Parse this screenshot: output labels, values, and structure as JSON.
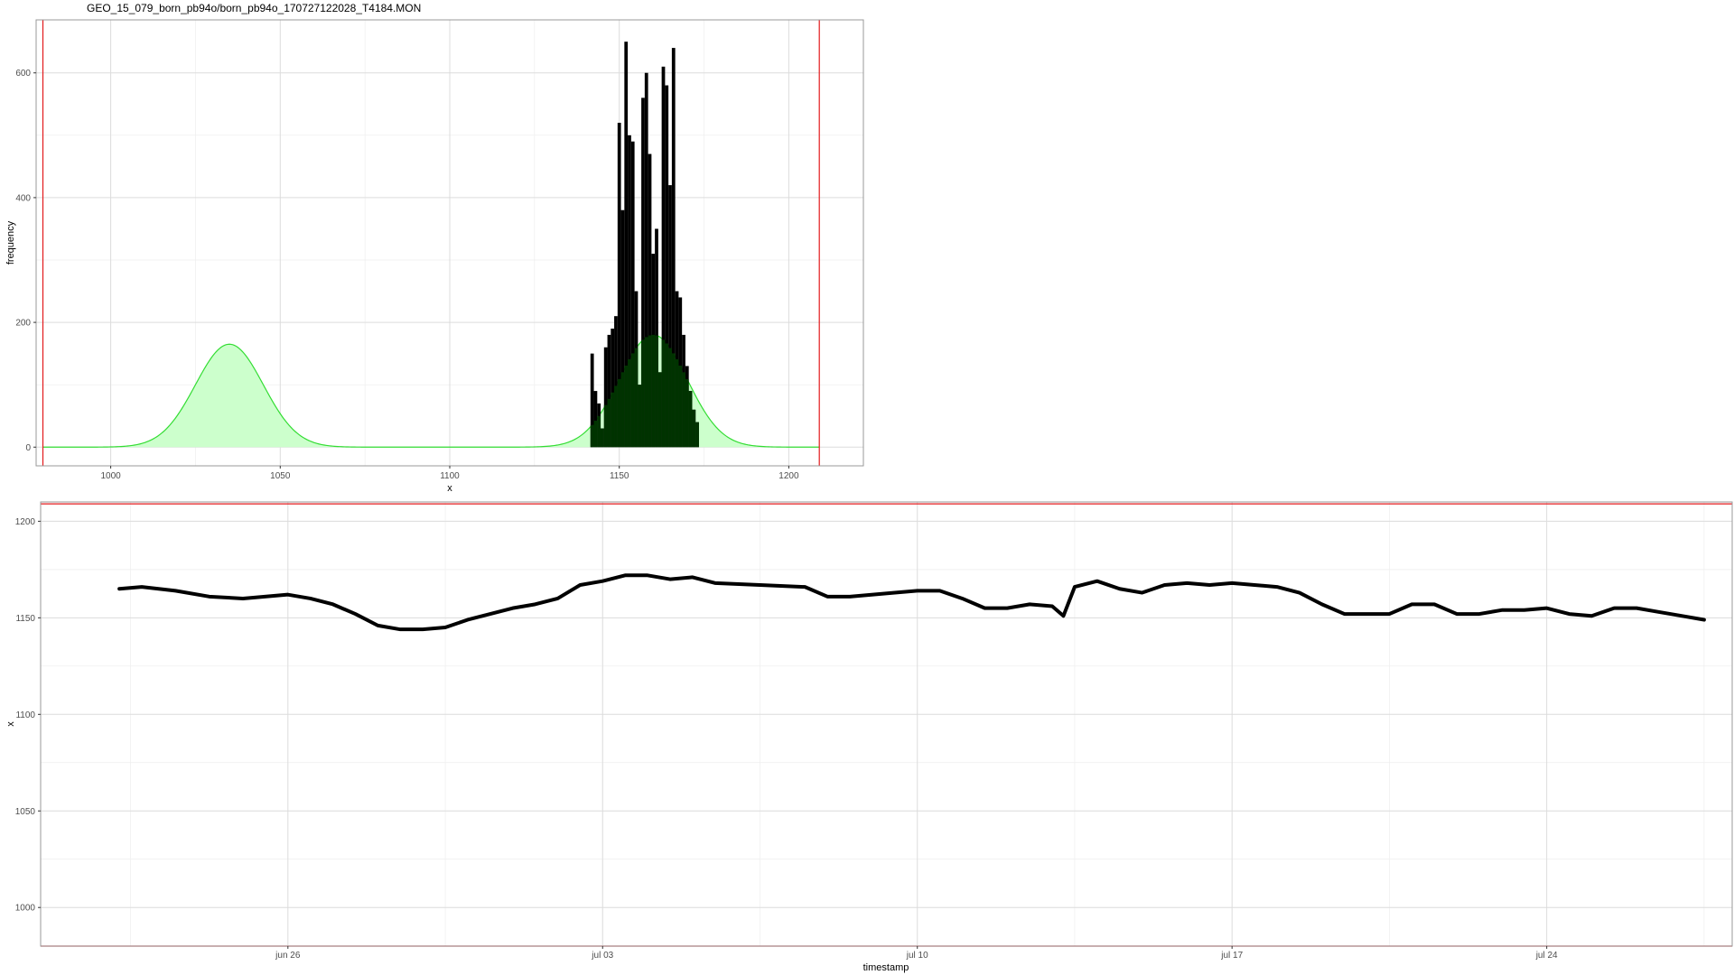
{
  "colors": {
    "limit_line": "#e31a1c",
    "density_fill": "#ccffcc",
    "density_stroke": "#33dd33",
    "histogram": "#000000",
    "overlap": "#003300",
    "grid_major": "#dcdcdc",
    "grid_minor": "#eeeeee",
    "panel_border": "#999999"
  },
  "chart_data": [
    {
      "type": "bar",
      "title": "GEO_15_079_born_pb94o/born_pb94o_170727122028_T4184.MON",
      "xlabel": "x",
      "ylabel": "frequency",
      "xlim": [
        978,
        1222
      ],
      "ylim": [
        -30,
        685
      ],
      "x_ticks": [
        1000,
        1050,
        1100,
        1150,
        1200
      ],
      "y_ticks": [
        0,
        200,
        400,
        600
      ],
      "grid": true,
      "vlines": [
        980,
        1209
      ],
      "bin_width": 1,
      "histogram": {
        "x": [
          1142,
          1143,
          1144,
          1145,
          1146,
          1147,
          1148,
          1149,
          1150,
          1151,
          1152,
          1153,
          1154,
          1155,
          1156,
          1157,
          1158,
          1159,
          1160,
          1161,
          1162,
          1163,
          1164,
          1165,
          1166,
          1167,
          1168,
          1169,
          1170,
          1171,
          1172,
          1173
        ],
        "values": [
          150,
          90,
          70,
          30,
          160,
          180,
          190,
          210,
          520,
          380,
          650,
          500,
          490,
          250,
          100,
          560,
          600,
          470,
          310,
          350,
          120,
          610,
          580,
          420,
          640,
          250,
          240,
          180,
          130,
          90,
          60,
          40
        ]
      },
      "densities": [
        {
          "mean": 1035,
          "sd": 10,
          "peak": 165
        },
        {
          "mean": 1160,
          "sd": 10,
          "peak": 180
        }
      ]
    },
    {
      "type": "line",
      "xlabel": "timestamp",
      "ylabel": "x",
      "xlim": [
        "2017-06-20 12:00",
        "2017-07-28 03:00"
      ],
      "ylim": [
        980,
        1210
      ],
      "x_ticks": [
        {
          "label": "jun 26",
          "date": "2017-06-26"
        },
        {
          "label": "jul 03",
          "date": "2017-07-03"
        },
        {
          "label": "jul 10",
          "date": "2017-07-10"
        },
        {
          "label": "jul 17",
          "date": "2017-07-17"
        },
        {
          "label": "jul 24",
          "date": "2017-07-24"
        }
      ],
      "y_ticks": [
        1000,
        1050,
        1100,
        1150,
        1200
      ],
      "grid": true,
      "hlines": [
        980,
        1209
      ],
      "series": [
        {
          "x": [
            "2017-06-22 06:00",
            "2017-06-22 18:00",
            "2017-06-23 12:00",
            "2017-06-24 06:00",
            "2017-06-25 00:00",
            "2017-06-26 00:00",
            "2017-06-26 12:00",
            "2017-06-27 00:00",
            "2017-06-27 12:00",
            "2017-06-28 00:00",
            "2017-06-28 12:00",
            "2017-06-29 00:00",
            "2017-06-29 12:00",
            "2017-06-30 00:00",
            "2017-06-30 12:00",
            "2017-07-01 00:00",
            "2017-07-01 12:00",
            "2017-07-02 00:00",
            "2017-07-02 12:00",
            "2017-07-03 00:00",
            "2017-07-03 12:00",
            "2017-07-04 00:00",
            "2017-07-04 12:00",
            "2017-07-05 00:00",
            "2017-07-05 12:00",
            "2017-07-06 12:00",
            "2017-07-07 12:00",
            "2017-07-08 00:00",
            "2017-07-08 12:00",
            "2017-07-09 12:00",
            "2017-07-10 00:00",
            "2017-07-10 12:00",
            "2017-07-11 00:00",
            "2017-07-11 12:00",
            "2017-07-12 00:00",
            "2017-07-12 12:00",
            "2017-07-13 00:00",
            "2017-07-13 06:00",
            "2017-07-13 12:00",
            "2017-07-14 00:00",
            "2017-07-14 12:00",
            "2017-07-15 00:00",
            "2017-07-15 12:00",
            "2017-07-16 00:00",
            "2017-07-16 12:00",
            "2017-07-17 00:00",
            "2017-07-17 12:00",
            "2017-07-18 00:00",
            "2017-07-18 12:00",
            "2017-07-19 00:00",
            "2017-07-19 12:00",
            "2017-07-20 00:00",
            "2017-07-20 12:00",
            "2017-07-21 00:00",
            "2017-07-21 12:00",
            "2017-07-22 00:00",
            "2017-07-22 12:00",
            "2017-07-23 00:00",
            "2017-07-23 12:00",
            "2017-07-24 00:00",
            "2017-07-24 12:00",
            "2017-07-25 00:00",
            "2017-07-25 12:00",
            "2017-07-26 00:00",
            "2017-07-26 12:00",
            "2017-07-27 00:00",
            "2017-07-27 12:00"
          ],
          "values": [
            1165,
            1166,
            1164,
            1161,
            1160,
            1162,
            1160,
            1157,
            1152,
            1146,
            1144,
            1144,
            1145,
            1149,
            1152,
            1155,
            1157,
            1160,
            1167,
            1169,
            1172,
            1172,
            1170,
            1171,
            1168,
            1167,
            1166,
            1161,
            1161,
            1163,
            1164,
            1164,
            1160,
            1155,
            1155,
            1157,
            1156,
            1151,
            1166,
            1169,
            1165,
            1163,
            1167,
            1168,
            1167,
            1168,
            1167,
            1166,
            1163,
            1157,
            1152,
            1152,
            1152,
            1157,
            1157,
            1152,
            1152,
            1154,
            1154,
            1155,
            1152,
            1151,
            1155,
            1155,
            1153,
            1151,
            1149
          ]
        }
      ]
    }
  ]
}
